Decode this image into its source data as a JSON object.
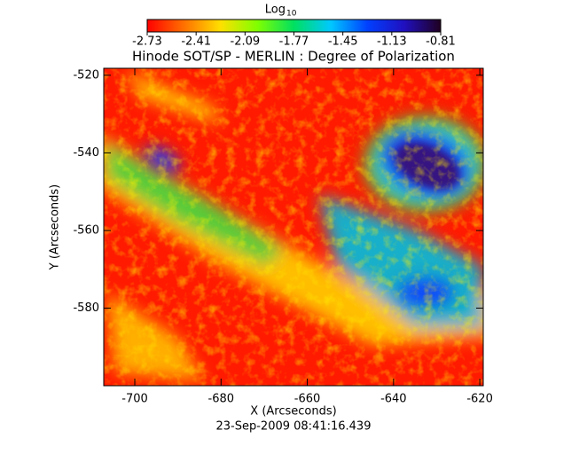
{
  "chart_data": {
    "type": "image",
    "title": "Hinode SOT/SP - MERLIN : Degree of Polarization",
    "x_label": "X (Arcseconds)",
    "y_label": "Y (Arcseconds)",
    "footer": "23-Sep-2009 08:41:16.439",
    "xlim": [
      -707.2,
      -619.2
    ],
    "ylim": [
      -600,
      -518.2
    ],
    "xticks": [
      -700,
      -680,
      -660,
      -640,
      -620
    ],
    "yticks": [
      -580,
      -560,
      -540,
      -520
    ],
    "colorbar_label": "Log",
    "colorbar_label_sub": "10",
    "colorbar_lim": [
      -2.73,
      -0.81
    ],
    "colorbar_ticks": [
      -2.73,
      -2.41,
      -2.09,
      -1.77,
      -1.45,
      -1.13,
      -0.81
    ],
    "colormap": [
      "#ff0000",
      "#ff7000",
      "#ffe000",
      "#80ff00",
      "#00e060",
      "#00c8ff",
      "#0040ff",
      "#2010c0",
      "#200020"
    ]
  }
}
